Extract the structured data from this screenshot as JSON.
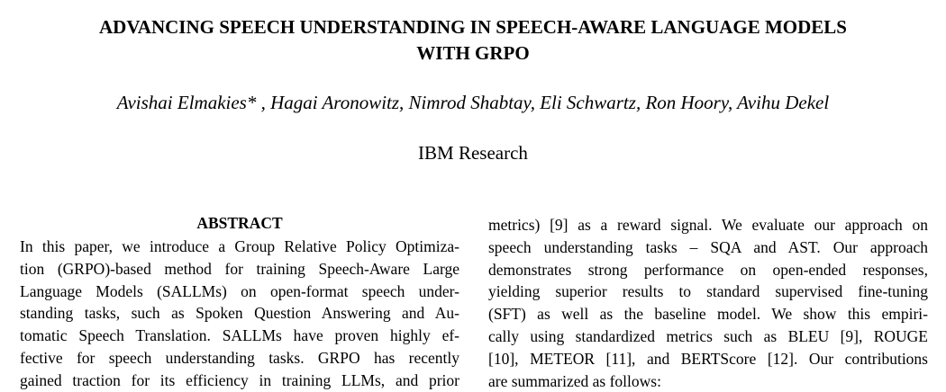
{
  "paper": {
    "title_lines": [
      "ADVANCING SPEECH UNDERSTANDING IN SPEECH-AWARE LANGUAGE MODELS",
      "WITH GRPO"
    ],
    "authors": "Avishai Elmakies* , Hagai Aronowitz, Nimrod Shabtay, Eli Schwartz, Ron Hoory, Avihu Dekel",
    "affiliation": "IBM Research",
    "abstract_heading": "ABSTRACT",
    "left_column_lines": [
      "In this paper, we introduce a Group Relative Policy Optimiza-",
      "tion (GRPO)-based method for training Speech-Aware Large",
      "Language Models (SALLMs) on open-format speech under-",
      "standing tasks, such as Spoken Question Answering and Au-",
      "tomatic Speech Translation. SALLMs have proven highly ef-",
      "fective for speech understanding tasks.  GRPO has recently",
      "gained traction for its efficiency in training LLMs, and prior"
    ],
    "right_column_lines": [
      "metrics) [9] as a reward signal. We evaluate our approach on",
      "speech understanding tasks – SQA and AST. Our approach",
      "demonstrates strong performance on open-ended responses,",
      "yielding superior results to standard supervised fine-tuning",
      "(SFT) as well as the baseline model.  We show this empiri-",
      "cally using standardized metrics such as BLEU [9], ROUGE",
      "[10], METEOR [11], and BERTScore [12]. Our contributions",
      "are summarized as follows:"
    ]
  }
}
